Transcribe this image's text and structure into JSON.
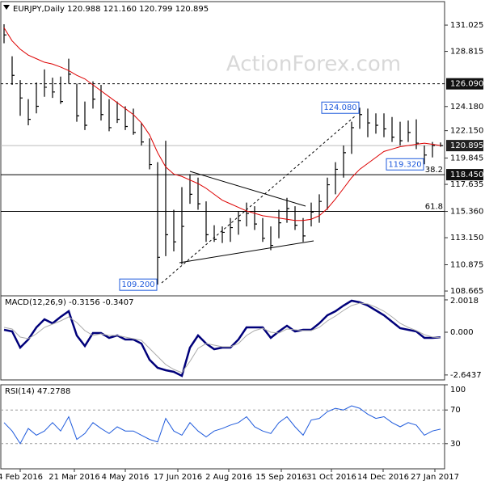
{
  "chart_data": [
    {
      "type": "ohlc",
      "title": "EURJPY,Daily  120.988 121.160 120.799 120.895",
      "watermark": "ActionForex.com",
      "ylim": [
        108.26,
        133.0
      ],
      "yticks": [
        131.025,
        128.815,
        {
          "value": 124.18,
          "label": "124.180"
        },
        {
          "value": 122.15,
          "label": "122.150"
        },
        119.845,
        117.635,
        {
          "value": 115.36,
          "label": "115.360"
        },
        {
          "value": 113.15,
          "label": "113.150"
        },
        110.875,
        108.665
      ],
      "color": "#000000",
      "high": [
        131.1,
        128.4,
        126.4,
        124.8,
        126.2,
        127.3,
        126.6,
        126.7,
        128.2,
        126.1,
        124.6,
        126.3,
        126.0,
        124.8,
        124.6,
        124.2,
        124.0,
        122.8,
        121.5,
        119.5,
        121.3,
        115.5,
        117.4,
        118.5,
        118.2,
        116.2,
        114.2,
        114.1,
        114.8,
        115.4,
        116.1,
        115.8,
        114.8,
        114.1,
        115.5,
        116.5,
        115.8,
        114.8,
        116.1,
        116.8,
        118.2,
        119.5,
        120.9,
        122.9,
        124.08,
        124.0,
        123.6,
        123.6,
        123.3,
        122.9,
        123.0,
        123.1,
        120.9,
        121.2,
        121.16
      ],
      "low": [
        129.5,
        126.0,
        123.4,
        122.6,
        123.6,
        125.0,
        124.9,
        124.4,
        126.1,
        122.9,
        122.2,
        124.0,
        123.0,
        122.1,
        122.8,
        122.2,
        121.8,
        120.9,
        118.9,
        109.2,
        111.6,
        112.0,
        110.9,
        116.0,
        115.5,
        112.8,
        112.8,
        112.7,
        112.8,
        113.4,
        114.1,
        113.8,
        112.8,
        112.1,
        113.1,
        114.4,
        113.8,
        112.8,
        114.1,
        114.4,
        115.5,
        116.8,
        118.2,
        120.2,
        122.3,
        121.6,
        121.9,
        121.6,
        121.2,
        120.9,
        121.2,
        120.6,
        119.32,
        119.9,
        120.799
      ],
      "close": [
        130.2,
        126.8,
        124.9,
        123.1,
        124.2,
        125.8,
        125.4,
        124.6,
        126.9,
        123.4,
        122.6,
        124.8,
        123.5,
        122.4,
        123.1,
        122.5,
        122.0,
        121.2,
        119.3,
        111.5,
        113.4,
        112.8,
        114.1,
        116.8,
        116.0,
        113.4,
        113.0,
        113.6,
        114.0,
        114.6,
        115.2,
        114.3,
        113.1,
        112.5,
        114.4,
        115.6,
        114.2,
        113.3,
        115.3,
        116.2,
        117.6,
        118.9,
        120.3,
        122.4,
        123.5,
        122.8,
        122.6,
        122.3,
        121.6,
        121.3,
        122.0,
        121.1,
        120.1,
        120.9,
        120.895
      ],
      "series": [
        {
          "color": "#dd0000",
          "values": [
            130.8,
            129.7,
            129.0,
            128.5,
            128.2,
            127.9,
            127.75,
            127.5,
            127.2,
            126.8,
            126.5,
            126.0,
            125.5,
            125.0,
            124.5,
            124.0,
            123.5,
            122.8,
            121.8,
            120.3,
            119.1,
            118.5,
            118.3,
            118.0,
            117.7,
            117.3,
            116.8,
            116.3,
            116.0,
            115.7,
            115.4,
            115.2,
            115.0,
            114.9,
            114.8,
            114.7,
            114.6,
            114.6,
            114.7,
            115.0,
            115.6,
            116.4,
            117.3,
            118.2,
            118.9,
            119.4,
            119.9,
            120.4,
            120.6,
            120.8,
            120.9,
            121.0,
            121.1,
            121.0,
            120.9
          ]
        }
      ],
      "levels": [
        {
          "value": 126.09,
          "label": "126.090",
          "style": "dashed"
        },
        {
          "value": 118.45,
          "label": "118.450",
          "fib": 38.2,
          "style": "solid"
        },
        {
          "value": 115.36,
          "fib": 61.8,
          "style": "solid"
        }
      ],
      "last": {
        "value": 120.895,
        "label": "120.895"
      },
      "annotations": [
        {
          "index": 44,
          "value": 124.08,
          "label": "124.080"
        },
        {
          "index": 52,
          "value": 119.32,
          "label": "119.320"
        },
        {
          "index": 19,
          "value": 109.2,
          "label": "109.200"
        }
      ]
    },
    {
      "type": "line",
      "title": "MACD(12,26,9) -0.3156 -0.3407",
      "ylim": [
        -2.95,
        2.25
      ],
      "yticks": [
        2.0018,
        {
          "value": 0,
          "label": "0.000"
        },
        -2.6437
      ],
      "series": [
        {
          "color": "#00007a",
          "values": [
            0.15,
            0.05,
            -0.95,
            -0.45,
            0.3,
            0.8,
            0.55,
            0.95,
            1.3,
            -0.2,
            -0.85,
            -0.05,
            -0.05,
            -0.35,
            -0.2,
            -0.45,
            -0.45,
            -0.7,
            -1.7,
            -2.2,
            -2.35,
            -2.45,
            -2.7,
            -0.95,
            -0.2,
            -0.7,
            -1.05,
            -0.95,
            -0.95,
            -0.45,
            0.3,
            0.3,
            0.3,
            -0.35,
            0.05,
            0.4,
            0.05,
            0.15,
            0.15,
            0.55,
            1.05,
            1.3,
            1.65,
            1.95,
            1.85,
            1.65,
            1.35,
            1.05,
            0.65,
            0.25,
            0.15,
            0.05,
            -0.35,
            -0.35,
            -0.3156
          ]
        },
        {
          "color": "#aaaaaa",
          "values": [
            0.3,
            0.2,
            -0.3,
            -0.4,
            -0.1,
            0.3,
            0.5,
            0.7,
            0.95,
            0.6,
            0.1,
            -0.2,
            -0.1,
            -0.2,
            -0.2,
            -0.3,
            -0.4,
            -0.5,
            -1.0,
            -1.5,
            -2.0,
            -2.3,
            -2.5,
            -1.8,
            -1.0,
            -0.7,
            -0.8,
            -0.9,
            -0.9,
            -0.7,
            -0.2,
            0.1,
            0.25,
            0.0,
            -0.05,
            0.2,
            0.15,
            0.1,
            0.1,
            0.3,
            0.7,
            1.0,
            1.35,
            1.65,
            1.8,
            1.75,
            1.55,
            1.3,
            0.95,
            0.55,
            0.3,
            0.1,
            -0.15,
            -0.3,
            -0.3407
          ]
        }
      ]
    },
    {
      "type": "line",
      "title": "RSI(14) 47.2788",
      "ylim": [
        0,
        100
      ],
      "yticks": [
        100,
        70,
        30
      ],
      "guides": [
        70,
        30
      ],
      "series": [
        {
          "color": "#1e5adc",
          "values": [
            55,
            45,
            30,
            48,
            40,
            45,
            55,
            45,
            62,
            35,
            42,
            55,
            48,
            42,
            50,
            45,
            45,
            40,
            35,
            32,
            60,
            45,
            40,
            55,
            45,
            38,
            45,
            48,
            52,
            55,
            62,
            50,
            45,
            42,
            55,
            62,
            50,
            40,
            58,
            60,
            68,
            72,
            70,
            75,
            72,
            65,
            60,
            62,
            55,
            50,
            55,
            52,
            40,
            45,
            47.2788
          ]
        }
      ],
      "xticks": [
        {
          "value": 2,
          "label": "4 Feb 2016"
        },
        {
          "value": 8.7,
          "label": "21 Mar 2016"
        },
        {
          "value": 15,
          "label": "4 May 2016"
        },
        {
          "value": 21.5,
          "label": "17 Jun 2016"
        },
        {
          "value": 27.8,
          "label": "2 Aug 2016"
        },
        {
          "value": 34.3,
          "label": "15 Sep 2016"
        },
        {
          "value": 40.5,
          "label": "31 Oct 2016"
        },
        {
          "value": 46.9,
          "label": "14 Dec 2016"
        },
        {
          "value": 53.3,
          "label": "27 Jan 2017"
        }
      ]
    }
  ]
}
